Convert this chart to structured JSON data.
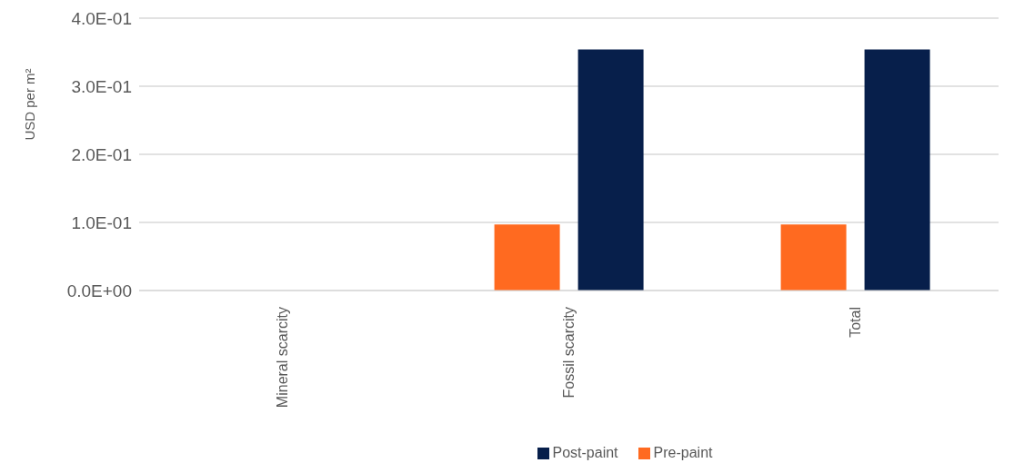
{
  "chart_data": {
    "type": "bar",
    "ylabel": "USD per m²",
    "categories": [
      "Mineral scarcity",
      "Fossil scarcity",
      "Total"
    ],
    "series": [
      {
        "name": "Pre-paint",
        "color": "#ff6a20",
        "values": [
          0,
          0.097,
          0.097
        ]
      },
      {
        "name": "Post-paint",
        "color": "#071f4b",
        "values": [
          0,
          0.354,
          0.354
        ]
      }
    ],
    "ylim": [
      0,
      0.4
    ],
    "yticks": [
      {
        "value": 0,
        "label": "0.0E+00"
      },
      {
        "value": 0.1,
        "label": "1.0E-01"
      },
      {
        "value": 0.2,
        "label": "2.0E-01"
      },
      {
        "value": 0.3,
        "label": "3.0E-01"
      },
      {
        "value": 0.4,
        "label": "4.0E-01"
      }
    ],
    "grid": "y",
    "legend": "bottom"
  }
}
